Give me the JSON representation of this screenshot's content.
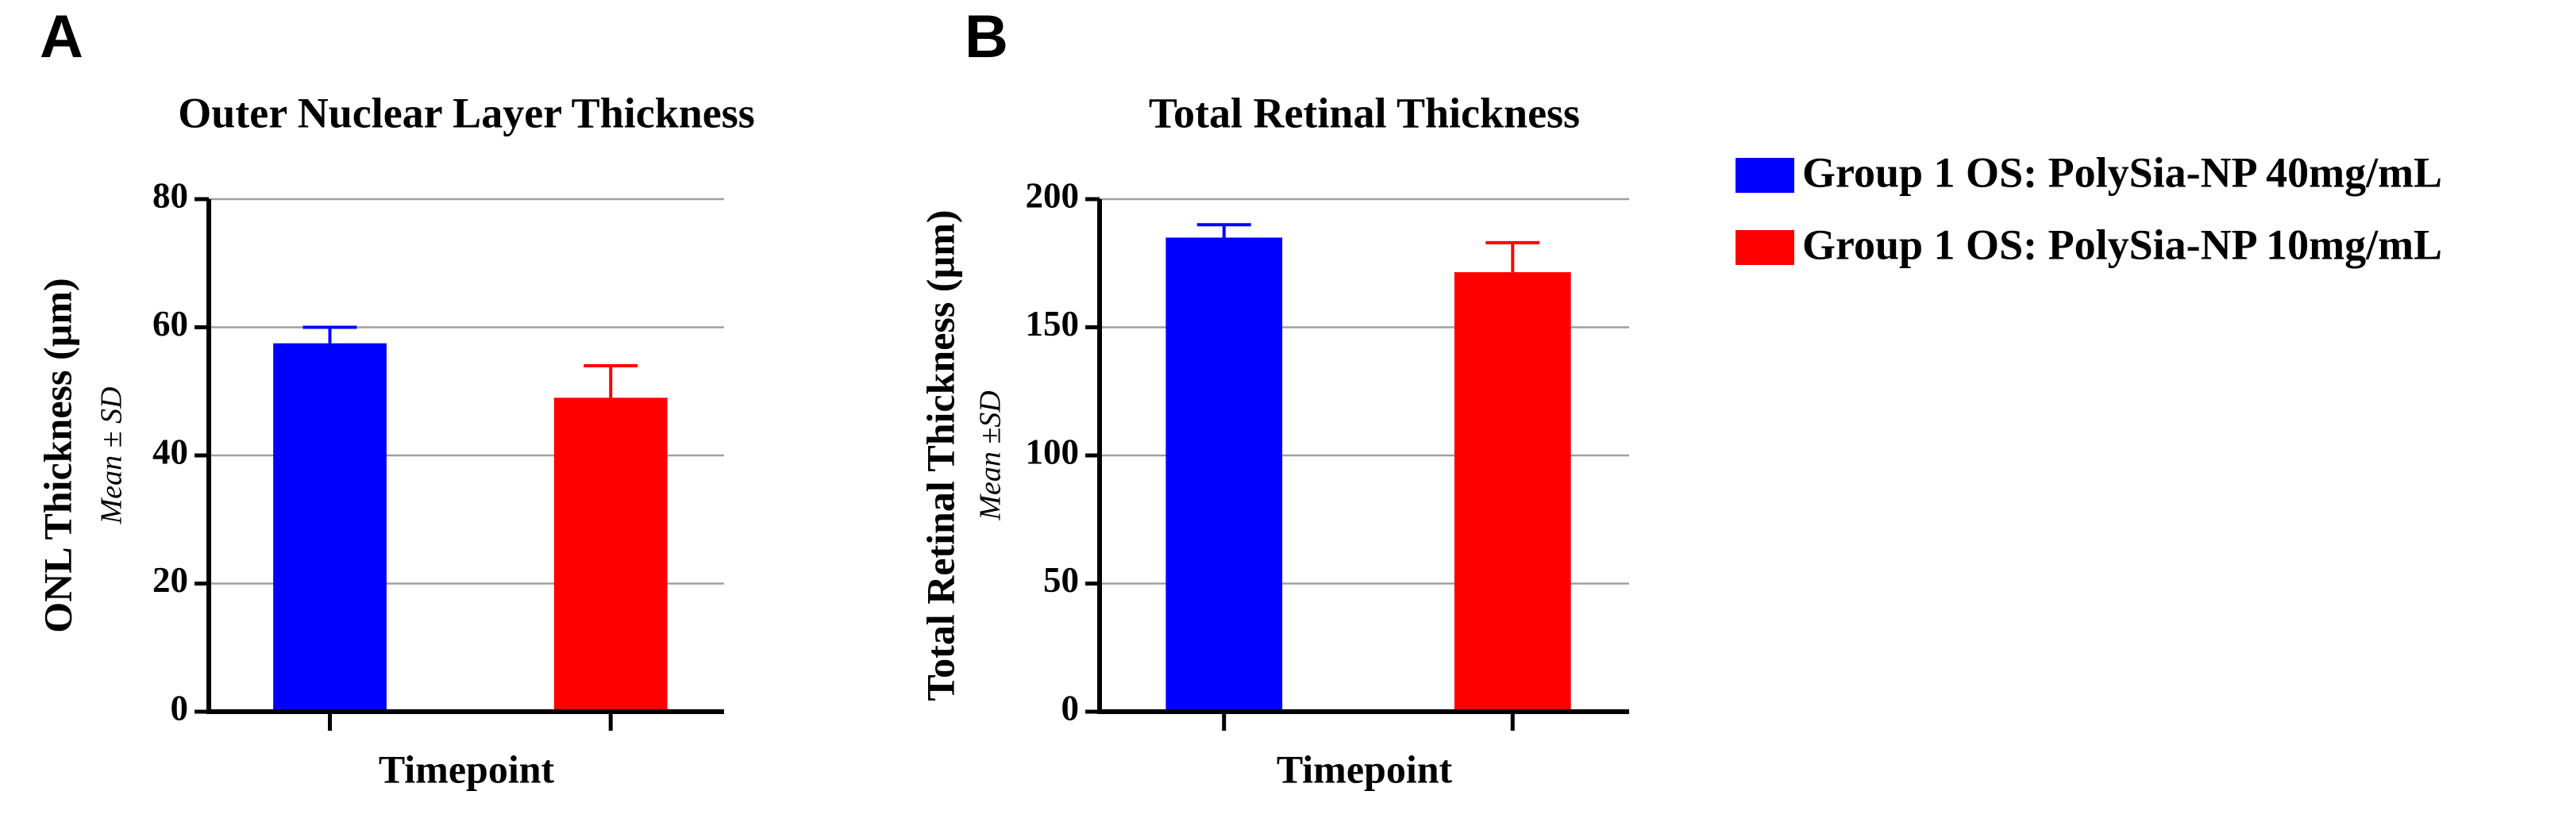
{
  "chart_data": [
    {
      "type": "bar",
      "panel": "A",
      "title": "Outer Nuclear Layer Thickness",
      "xlabel": "Timepoint",
      "ylabel": "ONL Thickness (µm)",
      "ylabel_note": "Mean ± SD",
      "categories": [
        null,
        null
      ],
      "series": [
        {
          "name": "Group 1 OS: PolySia-NP 40mg/mL",
          "color": "#0000ff",
          "values": [
            57.5,
            null
          ],
          "errors": [
            2.5,
            null
          ]
        },
        {
          "name": "Group 1 OS: PolySia-NP 10mg/mL",
          "color": "#ff0000",
          "values": [
            null,
            49
          ],
          "errors": [
            null,
            5
          ]
        }
      ],
      "ylim": [
        0,
        80
      ],
      "yticks": [
        0,
        20,
        40,
        60,
        80
      ],
      "grid": true
    },
    {
      "type": "bar",
      "panel": "B",
      "title": "Total Retinal Thickness",
      "xlabel": "Timepoint",
      "ylabel": "Total Retinal Thickness (µm)",
      "ylabel_note": "Mean ±SD",
      "categories": [
        null,
        null
      ],
      "series": [
        {
          "color": "#0000ff",
          "values": [
            185,
            null
          ],
          "errors": [
            5,
            null
          ]
        },
        {
          "color": "#ff0000",
          "values": [
            null,
            171.5
          ],
          "errors": [
            null,
            11.5
          ]
        }
      ],
      "ylim": [
        0,
        200
      ],
      "yticks": [
        0,
        50,
        100,
        150,
        200
      ],
      "grid": true
    }
  ]
}
